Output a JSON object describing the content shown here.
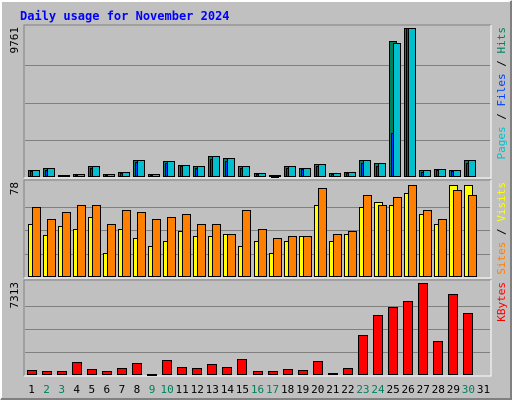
{
  "chart_data": {
    "type": "bar",
    "title": "Daily usage for November 2024",
    "categories": [
      "1",
      "2",
      "3",
      "4",
      "5",
      "6",
      "7",
      "8",
      "9",
      "10",
      "11",
      "12",
      "13",
      "14",
      "15",
      "16",
      "17",
      "18",
      "19",
      "20",
      "21",
      "22",
      "23",
      "24",
      "25",
      "26",
      "27",
      "28",
      "29",
      "30",
      "31"
    ],
    "weekend_days": [
      "2",
      "3",
      "9",
      "10",
      "16",
      "17",
      "23",
      "24",
      "30"
    ],
    "panels": [
      {
        "id": "hits",
        "ymax": 9761,
        "ymax_label": "9761",
        "right_label_parts": [
          {
            "text": "Pages",
            "color": "#00c0d0"
          },
          {
            "text": " / ",
            "color": "#000000"
          },
          {
            "text": "Files",
            "color": "#0040ff"
          },
          {
            "text": " / ",
            "color": "#000000"
          },
          {
            "text": "Hits",
            "color": "#00805c"
          }
        ],
        "series": [
          {
            "name": "Hits",
            "color": "#00805c",
            "values": [
              480,
              560,
              160,
              190,
              740,
              180,
              340,
              1130,
              210,
              1040,
              810,
              720,
              1350,
              1230,
              710,
              270,
              110,
              720,
              600,
              850,
              260,
              320,
              1090,
              900,
              8910,
              9761,
              430,
              520,
              470,
              1100,
              0
            ]
          },
          {
            "name": "Files",
            "color": "#0040ff",
            "values": [
              380,
              480,
              120,
              150,
              580,
              130,
              260,
              950,
              150,
              920,
              690,
              610,
              1150,
              1070,
              590,
              190,
              70,
              610,
              510,
              720,
              200,
              260,
              930,
              730,
              2900,
              9761,
              330,
              450,
              390,
              920,
              0
            ]
          },
          {
            "name": "Pages",
            "color": "#00c0d0",
            "values": [
              480,
              560,
              160,
              190,
              740,
              180,
              340,
              1130,
              210,
              1040,
              810,
              720,
              1350,
              1230,
              710,
              270,
              110,
              720,
              600,
              850,
              260,
              320,
              1090,
              900,
              8800,
              9761,
              430,
              520,
              470,
              1100,
              0
            ]
          }
        ]
      },
      {
        "id": "visits",
        "ymax": 78,
        "ymax_label": "78",
        "right_label_parts": [
          {
            "text": "Sites",
            "color": "#ff8000"
          },
          {
            "text": " / ",
            "color": "#000000"
          },
          {
            "text": "Visits",
            "color": "#ffff00"
          }
        ],
        "series": [
          {
            "name": "Visits",
            "color": "#ffff00",
            "values": [
              44,
              35,
              42,
              40,
              50,
              20,
              40,
              32,
              26,
              30,
              38,
              34,
              34,
              36,
              26,
              30,
              20,
              30,
              34,
              60,
              30,
              36,
              58,
              62,
              60,
              70,
              52,
              44,
              76,
              76,
              0
            ]
          },
          {
            "name": "Sites",
            "color": "#ff8000",
            "values": [
              58,
              48,
              54,
              60,
              60,
              44,
              56,
              54,
              48,
              50,
              52,
              44,
              44,
              36,
              56,
              40,
              32,
              34,
              34,
              74,
              36,
              38,
              68,
              60,
              66,
              76,
              56,
              48,
              72,
              68,
              0
            ]
          }
        ]
      },
      {
        "id": "kbytes",
        "ymax": 7313,
        "ymax_label": "7313",
        "right_label_parts": [
          {
            "text": "KBytes",
            "color": "#ff0000"
          }
        ],
        "series": [
          {
            "name": "KBytes",
            "color": "#ff0000",
            "values": [
              380,
              320,
              350,
              1030,
              460,
              290,
              570,
              990,
              60,
              1170,
              640,
              520,
              840,
              610,
              1260,
              340,
              280,
              500,
              430,
              1110,
              160,
              540,
              3150,
              4750,
              5380,
              5860,
              7313,
              2730,
              6440,
              4890,
              0
            ]
          }
        ]
      }
    ]
  },
  "colors": {
    "background": "#c0c0c0",
    "plot_background": "#c0c0c0",
    "grid": "#808080",
    "border_light": "#ffffff",
    "border_dark": "#808080",
    "title": "#0000ff",
    "weekday_label": "#000000",
    "weekend_label": "#00805c"
  }
}
